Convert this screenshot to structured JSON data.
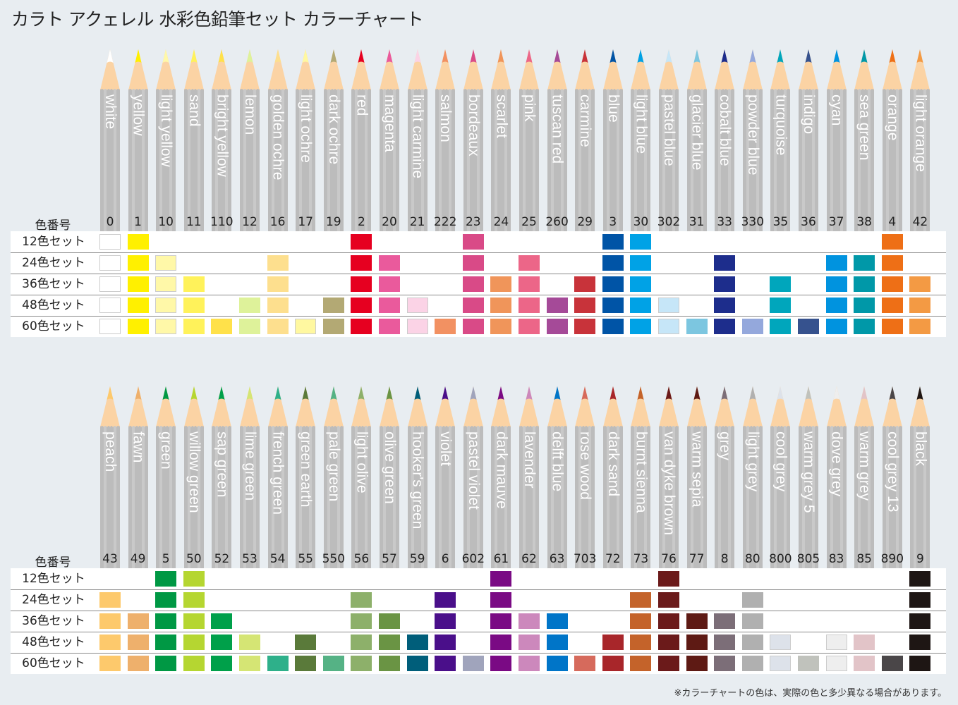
{
  "title": "カラト アクェレル 水彩色鉛筆セット カラーチャート",
  "note": "※カラーチャートの色は、実際の色と多少異なる場合があります。",
  "number_header": "色番号",
  "set_labels": [
    "12色セット",
    "24色セット",
    "36色セット",
    "48色セット",
    "60色セット"
  ],
  "chart_data": {
    "type": "table",
    "sets": [
      12,
      24,
      36,
      48,
      60
    ],
    "sections": [
      {
        "colors": [
          {
            "name": "white",
            "no": "0",
            "hex": "#ffffff",
            "min_set": 12
          },
          {
            "name": "yellow",
            "no": "1",
            "hex": "#fff000",
            "min_set": 12
          },
          {
            "name": "light yellow",
            "no": "10",
            "hex": "#fff8a8",
            "min_set": 24
          },
          {
            "name": "sand",
            "no": "11",
            "hex": "#fff25a",
            "min_set": 36
          },
          {
            "name": "bright yellow",
            "no": "110",
            "hex": "#ffe14a",
            "min_set": 60
          },
          {
            "name": "lemon",
            "no": "12",
            "hex": "#def29a",
            "min_set": 48
          },
          {
            "name": "golden ochre",
            "no": "16",
            "hex": "#fddf8e",
            "min_set": 24
          },
          {
            "name": "light ochre",
            "no": "17",
            "hex": "#fff8a0",
            "min_set": 60
          },
          {
            "name": "dark ochre",
            "no": "19",
            "hex": "#b3a974",
            "min_set": 48
          },
          {
            "name": "red",
            "no": "2",
            "hex": "#e60020",
            "min_set": 12
          },
          {
            "name": "magenta",
            "no": "20",
            "hex": "#ea5a9c",
            "min_set": 24
          },
          {
            "name": "light carmine",
            "no": "21",
            "hex": "#fbd3e6",
            "min_set": 48
          },
          {
            "name": "salmon",
            "no": "222",
            "hex": "#f29162",
            "min_set": 60
          },
          {
            "name": "bordeaux",
            "no": "23",
            "hex": "#d94a87",
            "min_set": 12
          },
          {
            "name": "scarlet",
            "no": "24",
            "hex": "#f0955a",
            "min_set": 36
          },
          {
            "name": "pink",
            "no": "25",
            "hex": "#ec6688",
            "min_set": 24
          },
          {
            "name": "tuscan red",
            "no": "260",
            "hex": "#a54a98",
            "min_set": 48
          },
          {
            "name": "carmine",
            "no": "29",
            "hex": "#c8333a",
            "min_set": 36
          },
          {
            "name": "blue",
            "no": "3",
            "hex": "#0054a6",
            "min_set": 12
          },
          {
            "name": "light blue",
            "no": "30",
            "hex": "#00a2e6",
            "min_set": 12
          },
          {
            "name": "pastel blue",
            "no": "302",
            "hex": "#c6e6f8",
            "min_set": 48
          },
          {
            "name": "glacier blue",
            "no": "31",
            "hex": "#7cc6e0",
            "min_set": 60
          },
          {
            "name": "cobalt blue",
            "no": "33",
            "hex": "#1d2d8c",
            "min_set": 24
          },
          {
            "name": "powder blue",
            "no": "330",
            "hex": "#94a8dc",
            "min_set": 60
          },
          {
            "name": "turquoise",
            "no": "35",
            "hex": "#00a6bc",
            "min_set": 36
          },
          {
            "name": "indigo",
            "no": "36",
            "hex": "#36528e",
            "min_set": 60
          },
          {
            "name": "cyan",
            "no": "37",
            "hex": "#0093df",
            "min_set": 24
          },
          {
            "name": "sea green",
            "no": "38",
            "hex": "#0098a8",
            "min_set": 24
          },
          {
            "name": "orange",
            "no": "4",
            "hex": "#ee6f16",
            "min_set": 12
          },
          {
            "name": "light orange",
            "no": "42",
            "hex": "#f39a44",
            "min_set": 36
          }
        ]
      },
      {
        "colors": [
          {
            "name": "peach",
            "no": "43",
            "hex": "#fdc96c",
            "min_set": 24
          },
          {
            "name": "fawn",
            "no": "49",
            "hex": "#eeb06c",
            "min_set": 36
          },
          {
            "name": "green",
            "no": "5",
            "hex": "#009844",
            "min_set": 12
          },
          {
            "name": "willow green",
            "no": "50",
            "hex": "#b5d631",
            "min_set": 12
          },
          {
            "name": "sap green",
            "no": "52",
            "hex": "#00a04a",
            "min_set": 36
          },
          {
            "name": "lime green",
            "no": "53",
            "hex": "#d5e574",
            "min_set": 48
          },
          {
            "name": "french green",
            "no": "54",
            "hex": "#2eb08a",
            "min_set": 60
          },
          {
            "name": "green earth",
            "no": "55",
            "hex": "#5a7a3a",
            "min_set": 48
          },
          {
            "name": "pale green",
            "no": "550",
            "hex": "#55b285",
            "min_set": 60
          },
          {
            "name": "light olive",
            "no": "56",
            "hex": "#8db06a",
            "min_set": 24
          },
          {
            "name": "olive green",
            "no": "57",
            "hex": "#6a9444",
            "min_set": 36
          },
          {
            "name": "hooker's green",
            "no": "59",
            "hex": "#005e7a",
            "min_set": 48
          },
          {
            "name": "violet",
            "no": "6",
            "hex": "#4a0f8a",
            "min_set": 24
          },
          {
            "name": "pastel violet",
            "no": "602",
            "hex": "#a0a4bc",
            "min_set": 60
          },
          {
            "name": "dark mauve",
            "no": "61",
            "hex": "#7a0a84",
            "min_set": 12
          },
          {
            "name": "lavender",
            "no": "62",
            "hex": "#cc88bc",
            "min_set": 36
          },
          {
            "name": "delft blue",
            "no": "63",
            "hex": "#0075c8",
            "min_set": 36
          },
          {
            "name": "rose wood",
            "no": "703",
            "hex": "#d66a5c",
            "min_set": 60
          },
          {
            "name": "dark sand",
            "no": "72",
            "hex": "#a8262a",
            "min_set": 48
          },
          {
            "name": "burnt sienna",
            "no": "73",
            "hex": "#c4632a",
            "min_set": 24
          },
          {
            "name": "van dyke brown",
            "no": "76",
            "hex": "#6b1a1a",
            "min_set": 12
          },
          {
            "name": "warm sepia",
            "no": "77",
            "hex": "#5e1a14",
            "min_set": 36
          },
          {
            "name": "grey",
            "no": "8",
            "hex": "#7c6e78",
            "min_set": 36
          },
          {
            "name": "light grey",
            "no": "80",
            "hex": "#b0b0b0",
            "min_set": 24
          },
          {
            "name": "cool grey",
            "no": "800",
            "hex": "#dde2ea",
            "min_set": 48
          },
          {
            "name": "warm grey 5",
            "no": "805",
            "hex": "#c0c2bc",
            "min_set": 60
          },
          {
            "name": "dove grey",
            "no": "83",
            "hex": "#eeeeee",
            "min_set": 48
          },
          {
            "name": "warm grey",
            "no": "85",
            "hex": "#e2c4c8",
            "min_set": 48
          },
          {
            "name": "cool grey 13",
            "no": "890",
            "hex": "#4a4648",
            "min_set": 60
          },
          {
            "name": "black",
            "no": "9",
            "hex": "#1e1614",
            "min_set": 12
          }
        ]
      }
    ]
  }
}
